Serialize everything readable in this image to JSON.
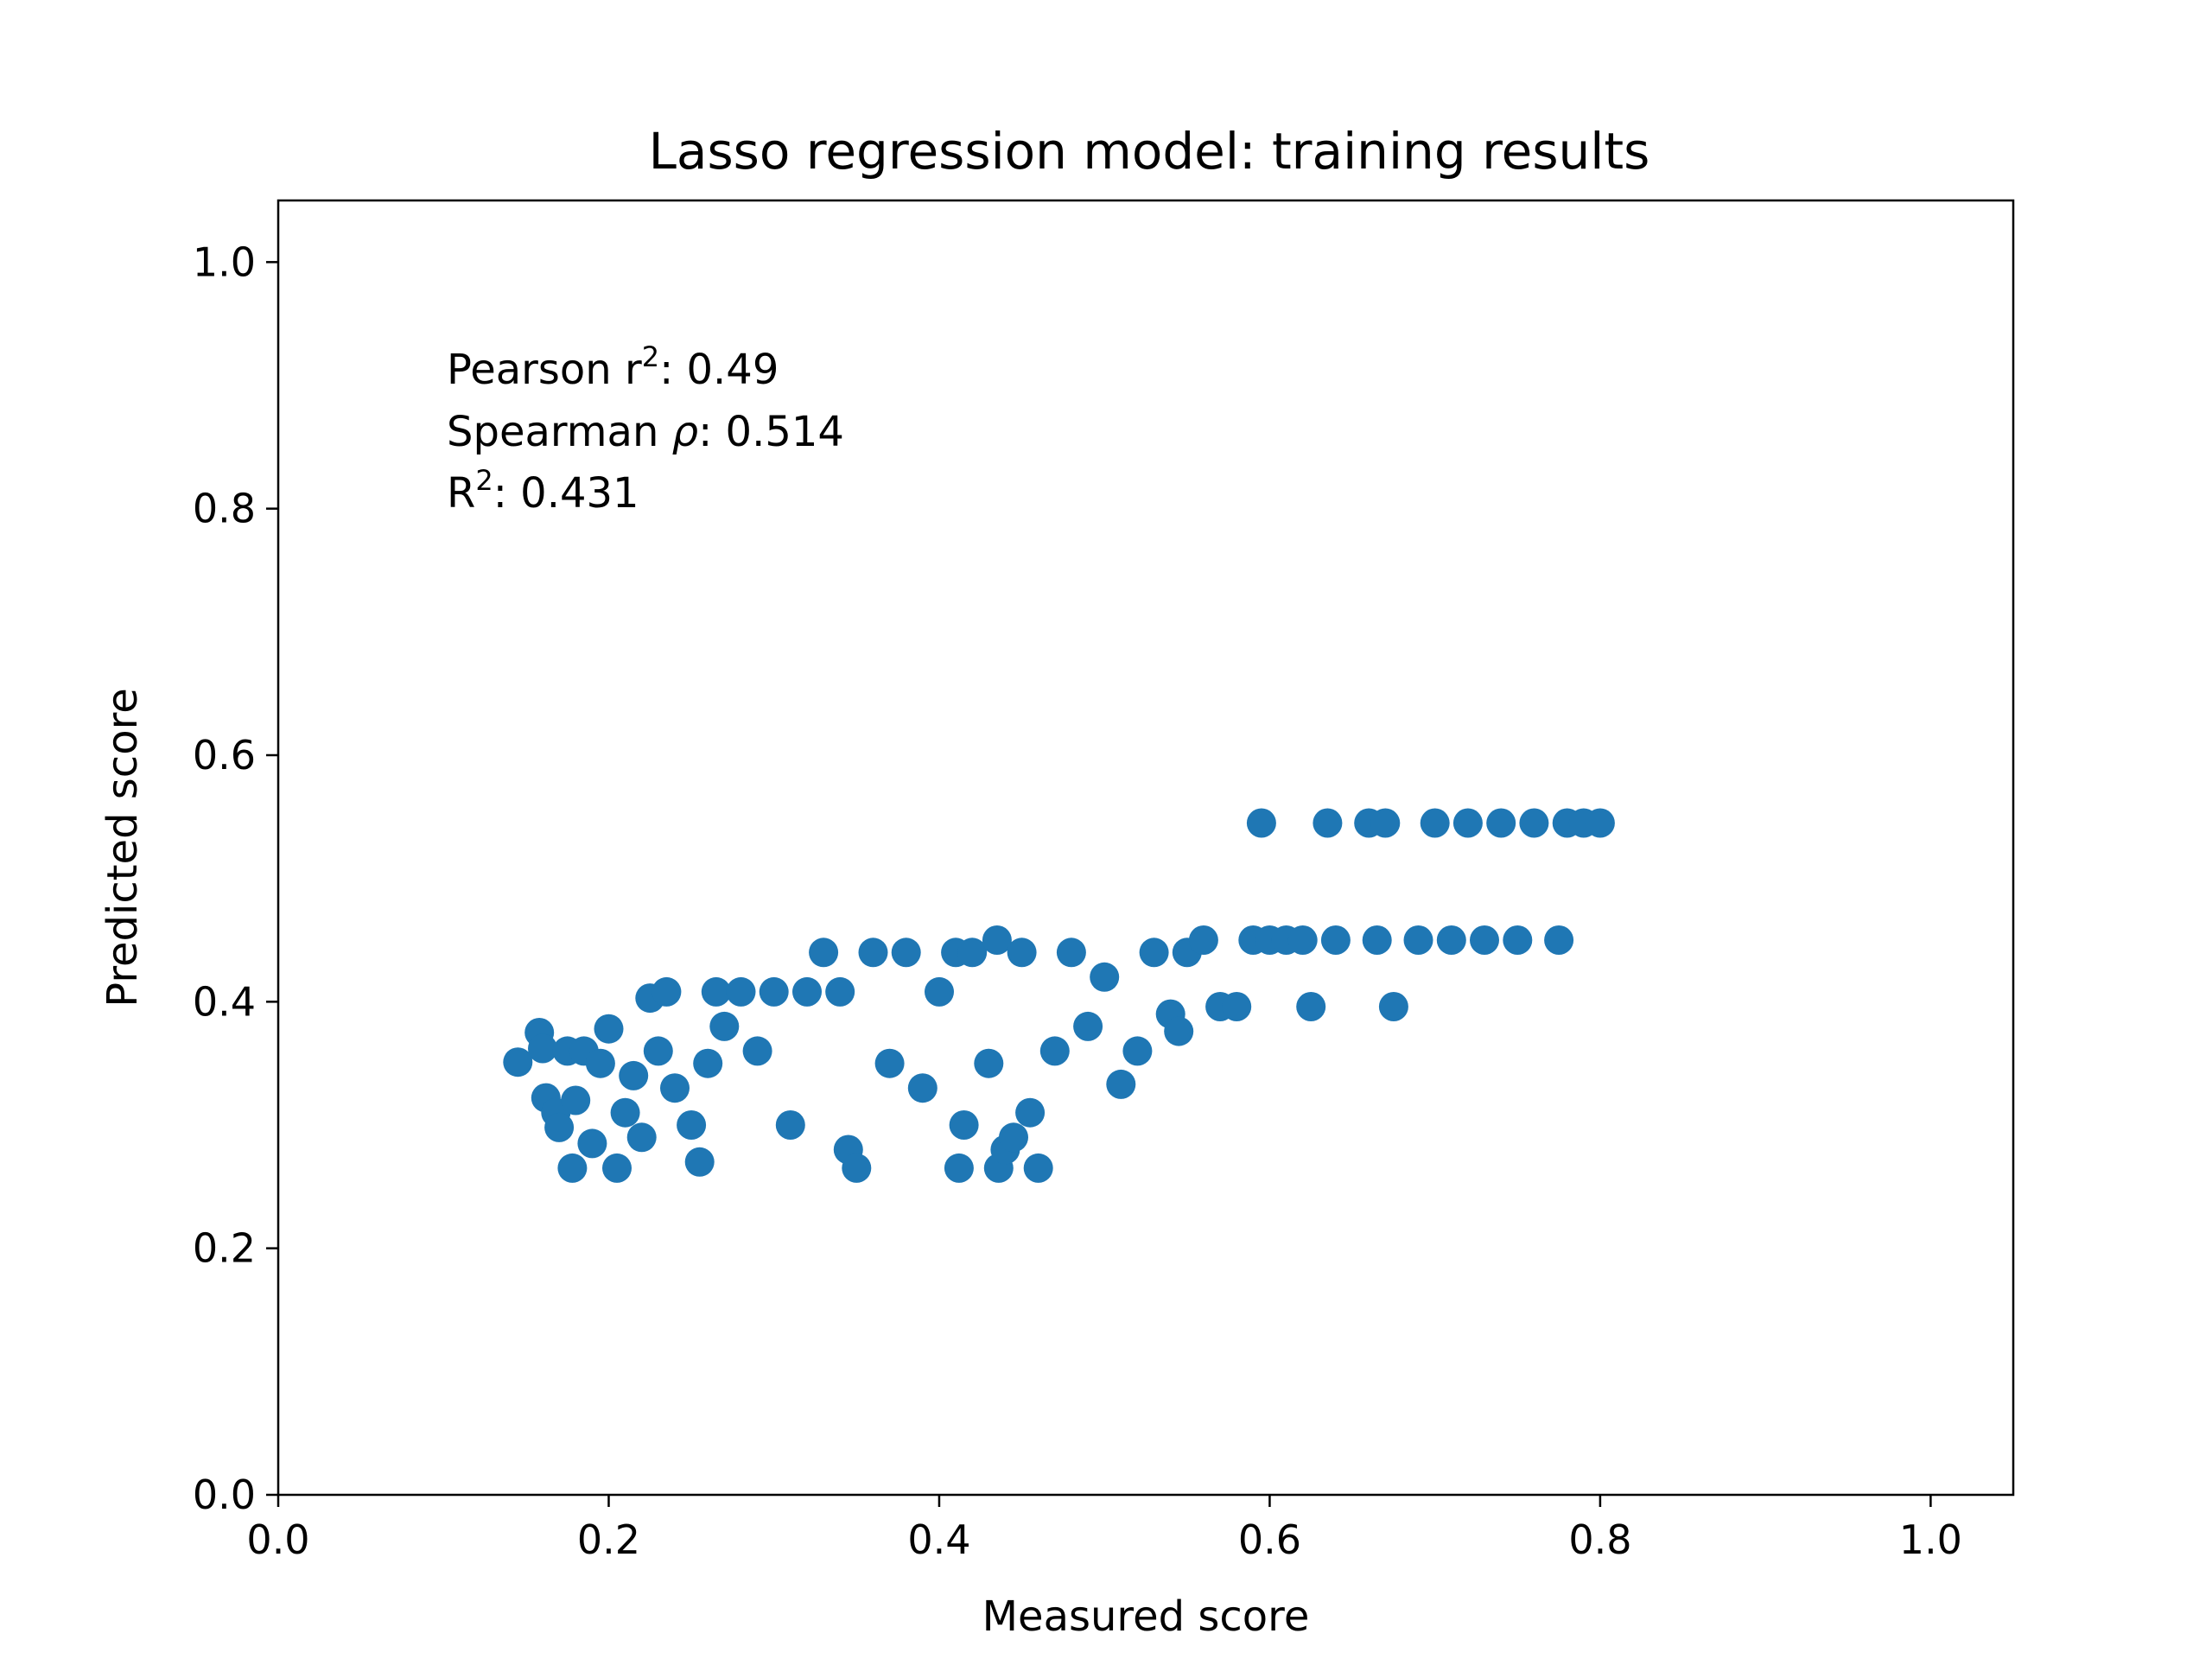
{
  "chart_data": {
    "type": "scatter",
    "title": "Lasso regression model: training results",
    "xlabel": "Measured score",
    "ylabel": "Predicted score",
    "xlim": [
      0.0,
      1.05
    ],
    "ylim": [
      0.0,
      1.05
    ],
    "xticks": [
      "0.0",
      "0.2",
      "0.4",
      "0.6",
      "0.8",
      "1.0"
    ],
    "yticks": [
      "0.0",
      "0.2",
      "0.4",
      "0.6",
      "0.8",
      "1.0"
    ],
    "grid": false,
    "marker_color": "#1f77b4",
    "annotation": {
      "pearson_label": "Pearson r",
      "pearson_sup": "2",
      "pearson_value": ": 0.49",
      "spearman_label": "Spearman ",
      "spearman_symbol": "ρ",
      "spearman_value": ": 0.514",
      "r2_label": "R",
      "r2_sup": "2",
      "r2_value": ": 0.431"
    },
    "series": [
      {
        "points": [
          [
            0.145,
            0.351
          ],
          [
            0.158,
            0.375
          ],
          [
            0.16,
            0.362
          ],
          [
            0.162,
            0.322
          ],
          [
            0.168,
            0.31
          ],
          [
            0.17,
            0.298
          ],
          [
            0.175,
            0.36
          ],
          [
            0.178,
            0.265
          ],
          [
            0.18,
            0.32
          ],
          [
            0.185,
            0.36
          ],
          [
            0.19,
            0.285
          ],
          [
            0.195,
            0.35
          ],
          [
            0.2,
            0.378
          ],
          [
            0.205,
            0.265
          ],
          [
            0.21,
            0.31
          ],
          [
            0.215,
            0.34
          ],
          [
            0.22,
            0.29
          ],
          [
            0.225,
            0.403
          ],
          [
            0.235,
            0.408
          ],
          [
            0.23,
            0.36
          ],
          [
            0.24,
            0.33
          ],
          [
            0.25,
            0.3
          ],
          [
            0.255,
            0.27
          ],
          [
            0.26,
            0.35
          ],
          [
            0.265,
            0.408
          ],
          [
            0.27,
            0.38
          ],
          [
            0.28,
            0.408
          ],
          [
            0.29,
            0.36
          ],
          [
            0.3,
            0.408
          ],
          [
            0.31,
            0.3
          ],
          [
            0.32,
            0.408
          ],
          [
            0.33,
            0.44
          ],
          [
            0.34,
            0.408
          ],
          [
            0.345,
            0.28
          ],
          [
            0.35,
            0.265
          ],
          [
            0.36,
            0.44
          ],
          [
            0.37,
            0.35
          ],
          [
            0.38,
            0.44
          ],
          [
            0.39,
            0.33
          ],
          [
            0.4,
            0.408
          ],
          [
            0.41,
            0.44
          ],
          [
            0.412,
            0.265
          ],
          [
            0.415,
            0.3
          ],
          [
            0.42,
            0.44
          ],
          [
            0.43,
            0.35
          ],
          [
            0.435,
            0.45
          ],
          [
            0.436,
            0.265
          ],
          [
            0.44,
            0.28
          ],
          [
            0.445,
            0.29
          ],
          [
            0.45,
            0.44
          ],
          [
            0.455,
            0.31
          ],
          [
            0.46,
            0.265
          ],
          [
            0.47,
            0.36
          ],
          [
            0.48,
            0.44
          ],
          [
            0.49,
            0.38
          ],
          [
            0.5,
            0.42
          ],
          [
            0.51,
            0.333
          ],
          [
            0.52,
            0.36
          ],
          [
            0.53,
            0.44
          ],
          [
            0.54,
            0.39
          ],
          [
            0.545,
            0.376
          ],
          [
            0.55,
            0.44
          ],
          [
            0.56,
            0.45
          ],
          [
            0.57,
            0.396
          ],
          [
            0.58,
            0.396
          ],
          [
            0.59,
            0.45
          ],
          [
            0.595,
            0.545
          ],
          [
            0.6,
            0.45
          ],
          [
            0.61,
            0.45
          ],
          [
            0.62,
            0.45
          ],
          [
            0.625,
            0.396
          ],
          [
            0.635,
            0.545
          ],
          [
            0.64,
            0.45
          ],
          [
            0.66,
            0.545
          ],
          [
            0.665,
            0.45
          ],
          [
            0.67,
            0.545
          ],
          [
            0.675,
            0.396
          ],
          [
            0.69,
            0.45
          ],
          [
            0.7,
            0.545
          ],
          [
            0.71,
            0.45
          ],
          [
            0.72,
            0.545
          ],
          [
            0.73,
            0.45
          ],
          [
            0.74,
            0.545
          ],
          [
            0.75,
            0.45
          ],
          [
            0.76,
            0.545
          ],
          [
            0.775,
            0.45
          ],
          [
            0.78,
            0.545
          ],
          [
            0.79,
            0.545
          ],
          [
            0.8,
            0.545
          ]
        ]
      }
    ]
  }
}
